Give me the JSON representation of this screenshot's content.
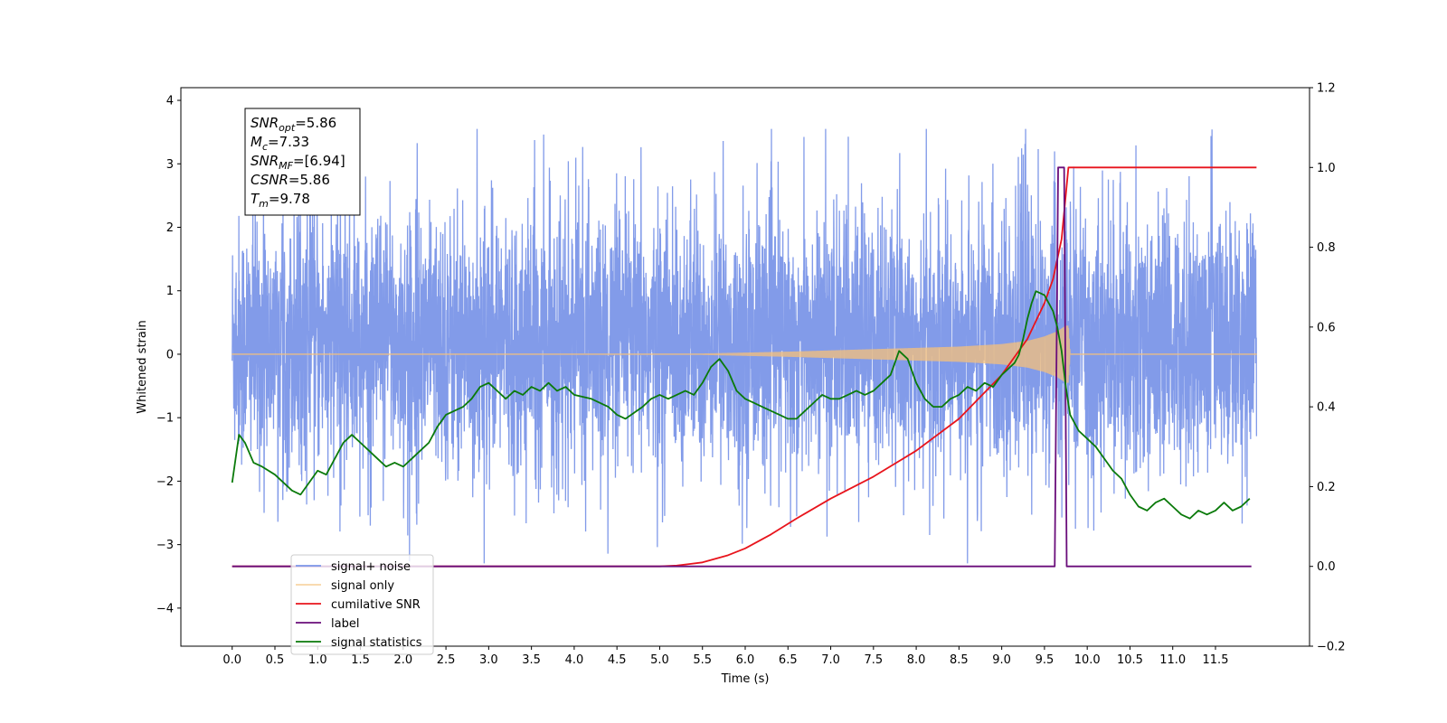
{
  "chart_data": {
    "type": "line",
    "xlabel": "Time (s)",
    "ylabel": "Whitened strain",
    "xlim": [
      -0.6,
      12.6
    ],
    "ylim_left": [
      -4.6,
      4.2
    ],
    "ylim_right": [
      -0.2,
      1.2
    ],
    "x_ticks": [
      0.0,
      0.5,
      1.0,
      1.5,
      2.0,
      2.5,
      3.0,
      3.5,
      4.0,
      4.5,
      5.0,
      5.5,
      6.0,
      6.5,
      7.0,
      7.5,
      8.0,
      8.5,
      9.0,
      9.5,
      10.0,
      10.5,
      11.0,
      11.5
    ],
    "x_tick_labels": [
      "0.0",
      "0.5",
      "1.0",
      "1.5",
      "2.0",
      "2.5",
      "3.0",
      "3.5",
      "4.0",
      "4.5",
      "5.0",
      "5.5",
      "6.0",
      "6.5",
      "7.0",
      "7.5",
      "8.0",
      "8.5",
      "9.0",
      "9.5",
      "10.0",
      "10.5",
      "11.0",
      "11.5"
    ],
    "y_left_ticks": [
      -4,
      -3,
      -2,
      -1,
      0,
      1,
      2,
      3,
      4
    ],
    "y_left_tick_labels": [
      "−4",
      "−3",
      "−2",
      "−1",
      "0",
      "1",
      "2",
      "3",
      "4"
    ],
    "y_right_ticks": [
      -0.2,
      0.0,
      0.2,
      0.4,
      0.6,
      0.8,
      1.0,
      1.2
    ],
    "y_right_tick_labels": [
      "−0.2",
      "0.0",
      "0.2",
      "0.4",
      "0.6",
      "0.8",
      "1.0",
      "1.2"
    ],
    "grid": false,
    "legend_position": "bottom-left",
    "annotation": {
      "lines": [
        {
          "base": "SNR",
          "sub": "opt",
          "rest": "=5.86"
        },
        {
          "base": "M",
          "sub": "c",
          "rest": "=7.33"
        },
        {
          "base": "SNR",
          "sub": "MF",
          "rest": "=[6.94]"
        },
        {
          "base": "CSNR",
          "sub": "",
          "rest": "=5.86"
        },
        {
          "base": "T",
          "sub": "m",
          "rest": "=9.78"
        }
      ]
    },
    "series": [
      {
        "name": "signal+ noise",
        "color": "#7b96e8",
        "axis": "left",
        "kind": "noise",
        "x_range": [
          0.0,
          11.98
        ],
        "typical_range": [
          -1.8,
          2.3
        ],
        "extreme_range": [
          -3.85,
          3.55
        ]
      },
      {
        "name": "signal only",
        "color": "#f5c07a",
        "axis": "left",
        "kind": "chirp",
        "x_range": [
          0.0,
          11.98
        ],
        "envelope": {
          "x": [
            0.0,
            5.5,
            6.5,
            7.5,
            8.5,
            9.0,
            9.3,
            9.5,
            9.65,
            9.75,
            9.78,
            9.8,
            11.98
          ],
          "amplitude": [
            0.01,
            0.01,
            0.04,
            0.08,
            0.12,
            0.16,
            0.21,
            0.28,
            0.36,
            0.45,
            0.45,
            0.01,
            0.01
          ]
        }
      },
      {
        "name": "cumilative SNR",
        "color": "#e8141c",
        "axis": "right",
        "x": [
          0.0,
          5.0,
          5.2,
          5.5,
          5.8,
          6.0,
          6.3,
          6.6,
          7.0,
          7.5,
          8.0,
          8.5,
          9.0,
          9.3,
          9.5,
          9.6,
          9.7,
          9.78,
          9.8,
          11.98
        ],
        "values": [
          0.0,
          0.0,
          0.002,
          0.01,
          0.028,
          0.045,
          0.08,
          0.12,
          0.17,
          0.225,
          0.29,
          0.37,
          0.48,
          0.57,
          0.66,
          0.72,
          0.82,
          1.0,
          1.0,
          1.0
        ]
      },
      {
        "name": "label",
        "color": "#6a0d7a",
        "axis": "right",
        "x": [
          0.0,
          9.62,
          9.66,
          9.73,
          9.76,
          9.78,
          11.92
        ],
        "values": [
          0.0,
          0.0,
          1.0,
          1.0,
          0.0,
          0.0,
          0.0
        ]
      },
      {
        "name": "signal statistics",
        "color": "#0a7a0a",
        "axis": "right",
        "x": [
          0.0,
          0.08,
          0.15,
          0.25,
          0.35,
          0.5,
          0.7,
          0.8,
          0.9,
          1.0,
          1.1,
          1.2,
          1.3,
          1.4,
          1.5,
          1.6,
          1.7,
          1.8,
          1.9,
          2.0,
          2.1,
          2.2,
          2.3,
          2.4,
          2.5,
          2.6,
          2.7,
          2.8,
          2.9,
          3.0,
          3.1,
          3.2,
          3.3,
          3.4,
          3.5,
          3.6,
          3.7,
          3.8,
          3.9,
          4.0,
          4.2,
          4.4,
          4.5,
          4.6,
          4.8,
          4.9,
          5.0,
          5.1,
          5.3,
          5.4,
          5.5,
          5.6,
          5.7,
          5.8,
          5.9,
          6.0,
          6.1,
          6.2,
          6.3,
          6.4,
          6.5,
          6.6,
          6.7,
          6.8,
          6.9,
          7.0,
          7.1,
          7.2,
          7.3,
          7.4,
          7.5,
          7.6,
          7.7,
          7.8,
          7.9,
          8.0,
          8.1,
          8.2,
          8.3,
          8.4,
          8.5,
          8.6,
          8.7,
          8.8,
          8.9,
          9.0,
          9.05,
          9.1,
          9.15,
          9.2,
          9.25,
          9.3,
          9.35,
          9.4,
          9.5,
          9.55,
          9.6,
          9.65,
          9.7,
          9.75,
          9.8,
          9.9,
          10.0,
          10.1,
          10.2,
          10.3,
          10.4,
          10.5,
          10.6,
          10.7,
          10.8,
          10.9,
          11.0,
          11.1,
          11.2,
          11.3,
          11.4,
          11.5,
          11.6,
          11.7,
          11.8,
          11.9
        ],
        "values": [
          0.21,
          0.33,
          0.31,
          0.26,
          0.25,
          0.23,
          0.19,
          0.18,
          0.21,
          0.24,
          0.23,
          0.27,
          0.31,
          0.33,
          0.31,
          0.29,
          0.27,
          0.25,
          0.26,
          0.25,
          0.27,
          0.29,
          0.31,
          0.35,
          0.38,
          0.39,
          0.4,
          0.42,
          0.45,
          0.46,
          0.44,
          0.42,
          0.44,
          0.43,
          0.45,
          0.44,
          0.46,
          0.44,
          0.45,
          0.43,
          0.42,
          0.4,
          0.38,
          0.37,
          0.4,
          0.42,
          0.43,
          0.42,
          0.44,
          0.43,
          0.46,
          0.5,
          0.52,
          0.49,
          0.44,
          0.42,
          0.41,
          0.4,
          0.39,
          0.38,
          0.37,
          0.37,
          0.39,
          0.41,
          0.43,
          0.42,
          0.42,
          0.43,
          0.44,
          0.43,
          0.44,
          0.46,
          0.48,
          0.54,
          0.52,
          0.46,
          0.42,
          0.4,
          0.4,
          0.42,
          0.43,
          0.45,
          0.44,
          0.46,
          0.45,
          0.48,
          0.49,
          0.5,
          0.51,
          0.53,
          0.57,
          0.62,
          0.66,
          0.69,
          0.68,
          0.66,
          0.64,
          0.6,
          0.54,
          0.45,
          0.38,
          0.34,
          0.32,
          0.3,
          0.27,
          0.24,
          0.22,
          0.18,
          0.15,
          0.14,
          0.16,
          0.17,
          0.15,
          0.13,
          0.12,
          0.14,
          0.13,
          0.14,
          0.16,
          0.14,
          0.15,
          0.17
        ]
      }
    ]
  }
}
